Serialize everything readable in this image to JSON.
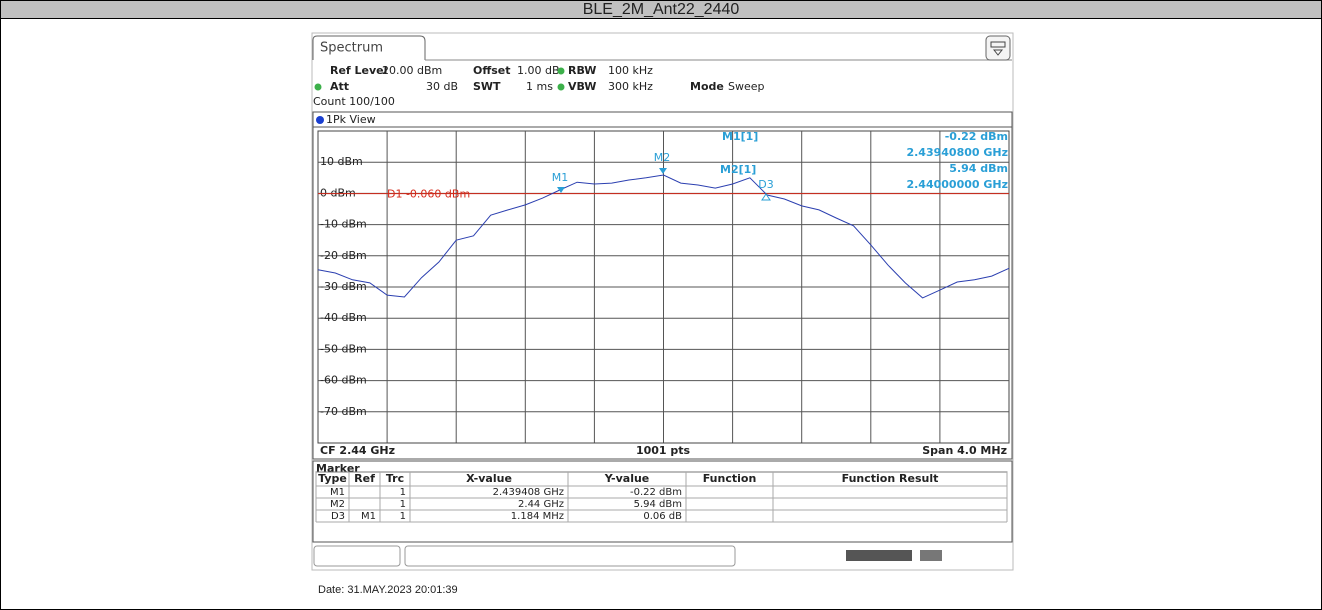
{
  "title": "BLE_2M_Ant22_2440",
  "tab": "Spectrum",
  "settings": {
    "ref_level": {
      "label": "Ref Level",
      "value": "20.00 dBm"
    },
    "offset": {
      "label": "Offset",
      "value": "1.00 dB"
    },
    "rbw": {
      "label": "RBW",
      "value": "100 kHz"
    },
    "att": {
      "label": "Att",
      "value": "30 dB"
    },
    "swt": {
      "label": "SWT",
      "value": "1 ms"
    },
    "vbw": {
      "label": "VBW",
      "value": "300 kHz"
    },
    "mode": {
      "label": "Mode",
      "value": "Sweep"
    },
    "count": "Count 100/100"
  },
  "graph": {
    "type": "line",
    "view": "1Pk View",
    "ylim": [
      -80,
      20
    ],
    "xlim": [
      2.438,
      2.442
    ],
    "yticks": [
      {
        "value": 10,
        "label": "10 dBm"
      },
      {
        "value": 0,
        "label": "0 dBm"
      },
      {
        "value": -10,
        "label": "-10 dBm"
      },
      {
        "value": -20,
        "label": "-20 dBm"
      },
      {
        "value": -30,
        "label": "-30 dBm"
      },
      {
        "value": -40,
        "label": "-40 dBm"
      },
      {
        "value": -50,
        "label": "-50 dBm"
      },
      {
        "value": -60,
        "label": "-60 dBm"
      },
      {
        "value": -70,
        "label": "-70 dBm"
      }
    ],
    "trace": {
      "color": "#2b3fb0",
      "x": [
        2.438,
        2.4381,
        2.4382,
        2.4383,
        2.4384,
        2.4385,
        2.4386,
        2.4387,
        2.4388,
        2.4389,
        2.439,
        2.4391,
        2.4392,
        2.4393,
        2.4394,
        2.4395,
        2.4396,
        2.4397,
        2.4398,
        2.4399,
        2.44,
        2.4401,
        2.4402,
        2.4403,
        2.4404,
        2.4405,
        2.4406,
        2.4407,
        2.4408,
        2.4409,
        2.441,
        2.4411,
        2.4412,
        2.4413,
        2.4414,
        2.4415,
        2.4416,
        2.4417,
        2.4418,
        2.4419,
        2.442
      ],
      "values": [
        -24.5,
        -25.5,
        -27.7,
        -28.7,
        -32.6,
        -33.2,
        -27,
        -22,
        -15,
        -13.6,
        -7,
        -5.3,
        -3.7,
        -1.5,
        1.1,
        3.6,
        3,
        3.3,
        4.3,
        5,
        5.9,
        3.3,
        2.7,
        1.7,
        3,
        5,
        -0.5,
        -1.8,
        -4,
        -5.3,
        -7.9,
        -10.4,
        -16.5,
        -23,
        -28.7,
        -33.5,
        -31,
        -28.4,
        -27.7,
        -26.5,
        -24
      ]
    },
    "display_line": {
      "label": "D1 -0.060 dBm",
      "value": -0.06,
      "color": "#d42a1a"
    },
    "marker_labels": [
      "M1",
      "M2",
      "D3"
    ],
    "marker_info": [
      {
        "name": "M1[1]",
        "y": "-0.22 dBm",
        "x": "2.43940800 GHz"
      },
      {
        "name": "M2[1]",
        "y": "5.94 dBm",
        "x": "2.44000000 GHz"
      }
    ],
    "cf": "CF 2.44 GHz",
    "points": "1001 pts",
    "span": "Span 4.0 MHz"
  },
  "table": {
    "title": "Marker",
    "headers": [
      "Type",
      "Ref",
      "Trc",
      "X-value",
      "Y-value",
      "Function",
      "Function Result"
    ],
    "rows": [
      [
        "M1",
        null,
        "1",
        "2.439408 GHz",
        "-0.22 dBm",
        null,
        null
      ],
      [
        "M2",
        null,
        "1",
        "2.44 GHz",
        "5.94 dBm",
        null,
        null
      ],
      [
        "D3",
        "M1",
        "1",
        "1.184 MHz",
        "0.06 dB",
        null,
        null
      ]
    ]
  },
  "date": "Date: 31.MAY.2023  20:01:39"
}
